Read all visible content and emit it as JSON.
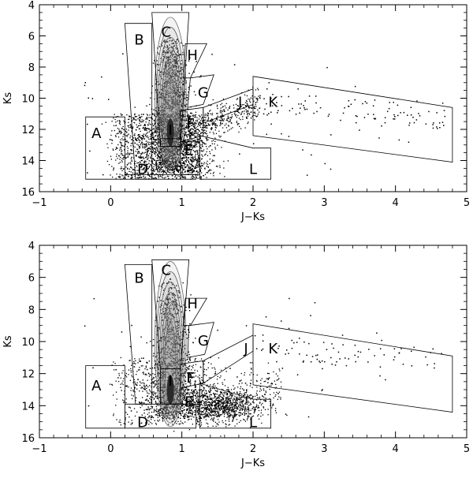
{
  "chart_data": [
    {
      "type": "scatter",
      "xlabel": "J−Ks",
      "ylabel": "Ks",
      "xlim": [
        -1,
        5
      ],
      "ylim": [
        16,
        4
      ],
      "xticks": [
        "−1",
        "0",
        "1",
        "2",
        "3",
        "4",
        "5"
      ],
      "yticks": [
        "4",
        "6",
        "8",
        "10",
        "12",
        "14",
        "16"
      ],
      "grid": false,
      "regions": [
        {
          "label": "A",
          "label_at": [
            -0.2,
            12.3
          ],
          "polygon": [
            [
              -0.35,
              11.2
            ],
            [
              0.2,
              11.2
            ],
            [
              0.2,
              15.2
            ],
            [
              -0.35,
              15.2
            ]
          ]
        },
        {
          "label": "B",
          "label_at": [
            0.4,
            6.3
          ],
          "polygon": [
            [
              0.2,
              5.2
            ],
            [
              0.58,
              5.2
            ],
            [
              0.58,
              15.2
            ],
            [
              0.35,
              15.2
            ]
          ]
        },
        {
          "label": "C",
          "label_at": [
            0.78,
            5.8
          ],
          "polygon": [
            [
              0.58,
              4.5
            ],
            [
              1.1,
              4.5
            ],
            [
              0.98,
              13.1
            ],
            [
              0.7,
              13.1
            ]
          ]
        },
        {
          "label": "D",
          "label_at": [
            0.45,
            14.6
          ],
          "polygon": [
            [
              0.2,
              14.9
            ],
            [
              1.2,
              14.9
            ],
            [
              1.2,
              15.2
            ],
            [
              0.2,
              15.2
            ]
          ]
        },
        {
          "label": "E",
          "label_at": [
            1.1,
            13.4
          ],
          "polygon": [
            [
              0.98,
              12.8
            ],
            [
              1.25,
              12.8
            ],
            [
              1.25,
              14.9
            ],
            [
              0.98,
              14.9
            ]
          ]
        },
        {
          "label": "F",
          "label_at": [
            1.12,
            11.7
          ],
          "polygon": [
            [
              0.98,
              10.8
            ],
            [
              1.3,
              10.6
            ],
            [
              1.3,
              12.4
            ],
            [
              0.98,
              12.8
            ]
          ]
        },
        {
          "label": "G",
          "label_at": [
            1.3,
            9.7
          ],
          "polygon": [
            [
              1.12,
              8.7
            ],
            [
              1.45,
              8.5
            ],
            [
              1.3,
              10.4
            ],
            [
              1.08,
              10.6
            ]
          ]
        },
        {
          "label": "H",
          "label_at": [
            1.15,
            7.3
          ],
          "polygon": [
            [
              1.05,
              6.5
            ],
            [
              1.35,
              6.5
            ],
            [
              1.12,
              8.7
            ],
            [
              1.02,
              8.7
            ]
          ]
        },
        {
          "label": "I",
          "label_at": [
            0.84,
            12.1
          ],
          "polygon": [
            [
              0.7,
              12.6
            ],
            [
              0.98,
              12.6
            ],
            [
              0.98,
              13.1
            ],
            [
              0.7,
              13.1
            ]
          ]
        },
        {
          "label": "J",
          "label_at": [
            1.82,
            10.3
          ],
          "polygon": [
            [
              1.3,
              10.6
            ],
            [
              2.0,
              9.4
            ],
            [
              2.0,
              10.4
            ],
            [
              1.3,
              11.6
            ]
          ]
        },
        {
          "label": "K",
          "label_at": [
            2.28,
            10.3
          ],
          "polygon": [
            [
              2.0,
              8.6
            ],
            [
              4.8,
              10.6
            ],
            [
              4.8,
              14.1
            ],
            [
              2.0,
              12.4
            ]
          ]
        },
        {
          "label": "L",
          "label_at": [
            2.0,
            14.6
          ],
          "polygon": [
            [
              1.25,
              12.4
            ],
            [
              2.0,
              13.2
            ],
            [
              2.25,
              13.2
            ],
            [
              2.25,
              15.2
            ],
            [
              1.25,
              15.2
            ]
          ]
        }
      ]
    },
    {
      "type": "scatter",
      "xlabel": "J−Ks",
      "ylabel": "Ks",
      "xlim": [
        -1,
        5
      ],
      "ylim": [
        16,
        4
      ],
      "xticks": [
        "−1",
        "0",
        "1",
        "2",
        "3",
        "4",
        "5"
      ],
      "yticks": [
        "4",
        "6",
        "8",
        "10",
        "12",
        "14",
        "16"
      ],
      "grid": false,
      "regions": [
        {
          "label": "A",
          "label_at": [
            -0.2,
            12.8
          ],
          "polygon": [
            [
              -0.35,
              11.5
            ],
            [
              0.2,
              11.5
            ],
            [
              0.2,
              15.4
            ],
            [
              -0.35,
              15.4
            ]
          ]
        },
        {
          "label": "B",
          "label_at": [
            0.4,
            6.1
          ],
          "polygon": [
            [
              0.2,
              5.2
            ],
            [
              0.58,
              5.2
            ],
            [
              0.58,
              13.9
            ],
            [
              0.35,
              13.9
            ]
          ]
        },
        {
          "label": "C",
          "label_at": [
            0.78,
            5.6
          ],
          "polygon": [
            [
              0.58,
              4.9
            ],
            [
              1.1,
              4.9
            ],
            [
              0.98,
              11.7
            ],
            [
              0.7,
              11.7
            ]
          ]
        },
        {
          "label": "D",
          "label_at": [
            0.45,
            15.1
          ],
          "polygon": [
            [
              0.2,
              13.9
            ],
            [
              1.2,
              13.9
            ],
            [
              1.2,
              15.4
            ],
            [
              0.2,
              15.4
            ]
          ]
        },
        {
          "label": "E",
          "label_at": [
            1.1,
            13.8
          ],
          "polygon": [
            [
              0.98,
              13.2
            ],
            [
              1.25,
              13.2
            ],
            [
              1.25,
              13.9
            ],
            [
              0.98,
              13.9
            ]
          ]
        },
        {
          "label": "F",
          "label_at": [
            1.12,
            12.3
          ],
          "polygon": [
            [
              0.98,
              11.4
            ],
            [
              1.3,
              11.2
            ],
            [
              1.3,
              12.6
            ],
            [
              0.98,
              12.9
            ]
          ]
        },
        {
          "label": "G",
          "label_at": [
            1.3,
            10.0
          ],
          "polygon": [
            [
              1.1,
              9.0
            ],
            [
              1.45,
              8.8
            ],
            [
              1.32,
              10.8
            ],
            [
              1.08,
              11.0
            ]
          ]
        },
        {
          "label": "H",
          "label_at": [
            1.15,
            7.7
          ],
          "polygon": [
            [
              1.05,
              7.3
            ],
            [
              1.35,
              7.3
            ],
            [
              1.12,
              9.0
            ],
            [
              1.02,
              9.0
            ]
          ]
        },
        {
          "label": "I",
          "label_at": [
            0.84,
            12.5
          ],
          "polygon": [
            [
              0.7,
              11.7
            ],
            [
              0.98,
              11.7
            ],
            [
              0.98,
              13.9
            ],
            [
              0.7,
              13.9
            ]
          ]
        },
        {
          "label": "J",
          "label_at": [
            1.9,
            10.5
          ],
          "polygon": [
            [
              1.3,
              11.2
            ],
            [
              2.0,
              9.6
            ],
            [
              2.0,
              10.6
            ],
            [
              1.3,
              12.6
            ]
          ]
        },
        {
          "label": "K",
          "label_at": [
            2.28,
            10.5
          ],
          "polygon": [
            [
              2.0,
              8.9
            ],
            [
              4.8,
              10.9
            ],
            [
              4.8,
              14.4
            ],
            [
              2.0,
              12.7
            ]
          ]
        },
        {
          "label": "L",
          "label_at": [
            2.0,
            15.1
          ],
          "polygon": [
            [
              1.25,
              12.6
            ],
            [
              2.0,
              13.6
            ],
            [
              2.25,
              13.6
            ],
            [
              2.25,
              15.4
            ],
            [
              1.25,
              15.4
            ]
          ]
        }
      ]
    }
  ]
}
